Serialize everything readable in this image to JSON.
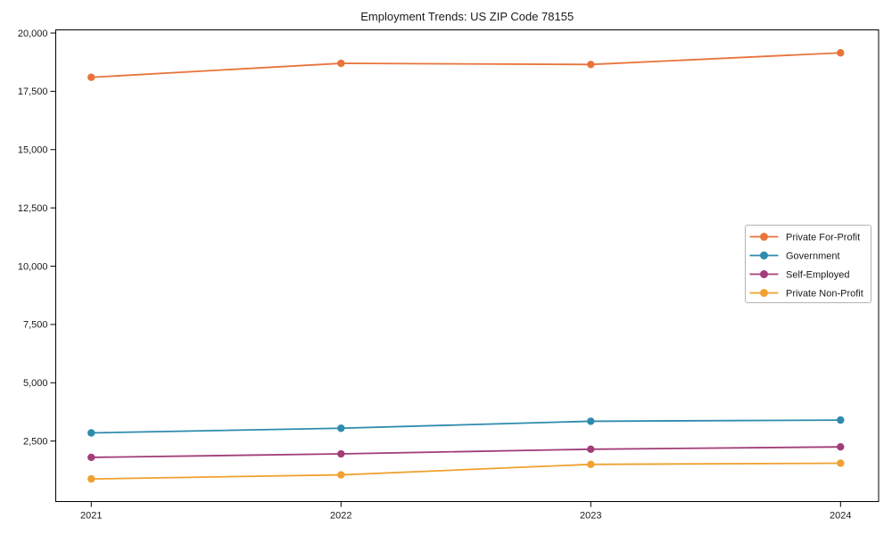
{
  "chart_data": {
    "type": "line",
    "title": "Employment Trends: US ZIP Code 78155",
    "xlabel": "",
    "ylabel": "",
    "x": [
      2021,
      2022,
      2023,
      2024
    ],
    "xtick_labels": [
      "2021",
      "2022",
      "2023",
      "2024"
    ],
    "yticks": [
      2500,
      5000,
      7500,
      10000,
      12500,
      15000,
      17500,
      20000
    ],
    "ytick_labels": [
      "2,500",
      "5,000",
      "7,500",
      "10,000",
      "12,500",
      "15,000",
      "17,500",
      "20,000"
    ],
    "ylim": [
      -95,
      20135
    ],
    "grid": false,
    "marker": "circle",
    "axis_color": "#000000",
    "text_color": "#1a1a1a",
    "legend": {
      "position": "center-right",
      "border_color": "#b3b3b3",
      "background": "#ffffff"
    },
    "series": [
      {
        "name": "Private For-Profit",
        "color": "#e8743b",
        "values": [
          18100,
          18700,
          18650,
          19150
        ]
      },
      {
        "name": "Government",
        "color": "#2e8bad",
        "values": [
          2850,
          3050,
          3350,
          3400
        ]
      },
      {
        "name": "Self-Employed",
        "color": "#a23d79",
        "values": [
          1800,
          1950,
          2150,
          2250
        ]
      },
      {
        "name": "Private Non-Profit",
        "color": "#f0a12f",
        "values": [
          875,
          1050,
          1500,
          1550
        ]
      }
    ]
  }
}
